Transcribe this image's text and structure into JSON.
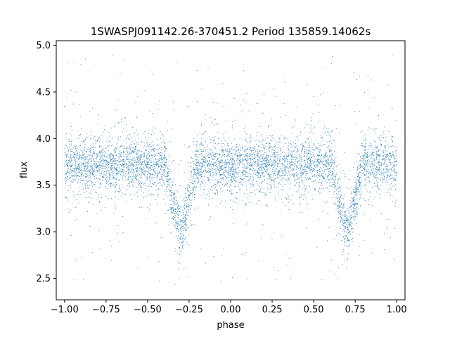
{
  "chart_data": {
    "type": "scatter",
    "title": "1SWASPJ091142.26-370451.2 Period 135859.14062s",
    "xlabel": "phase",
    "ylabel": "flux",
    "xlim": [
      -1.05,
      1.05
    ],
    "ylim": [
      2.27,
      5.05
    ],
    "xticks": [
      -1.0,
      -0.75,
      -0.5,
      -0.25,
      0.0,
      0.25,
      0.5,
      0.75,
      1.0
    ],
    "xtick_labels": [
      "−1.00",
      "−0.75",
      "−0.50",
      "−0.25",
      "0.00",
      "0.25",
      "0.50",
      "0.75",
      "1.00"
    ],
    "yticks": [
      2.5,
      3.0,
      3.5,
      4.0,
      4.5,
      5.0
    ],
    "ytick_labels": [
      "2.5",
      "3.0",
      "3.5",
      "4.0",
      "4.5",
      "5.0"
    ],
    "grid": false,
    "marker_color": "#1f77b4",
    "light_curve": {
      "phase_range": [
        -1.0,
        1.0
      ],
      "baseline_flux": 3.72,
      "baseline_scatter": 0.14,
      "eclipse_centers": [
        -0.3,
        0.7
      ],
      "eclipse_min_flux": 3.02,
      "eclipse_halfwidth": 0.09,
      "outlier_flux_range": [
        2.45,
        4.9
      ],
      "point_count": 6000
    }
  }
}
